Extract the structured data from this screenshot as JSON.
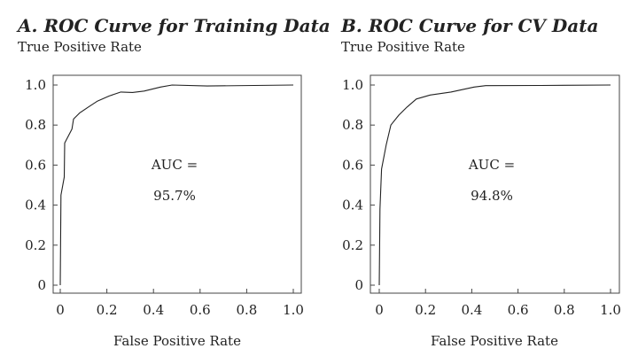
{
  "chart_data": [
    {
      "type": "line",
      "title": "A. ROC Curve for Training Data",
      "xlabel": "False Positive Rate",
      "ylabel": "True Positive Rate",
      "xlim": [
        0,
        1
      ],
      "ylim": [
        0,
        1
      ],
      "xticks": [
        "0",
        "0.2",
        "0.4",
        "0.6",
        "0.8",
        "1.0"
      ],
      "yticks": [
        "0",
        "0.2",
        "0.4",
        "0.6",
        "0.8",
        "1.0"
      ],
      "grid": false,
      "annotation": [
        "AUC =",
        "95.7%"
      ],
      "series": [
        {
          "x": [
            0,
            0.003,
            0.017,
            0.019,
            0.05,
            0.057,
            0.083,
            0.12,
            0.16,
            0.21,
            0.26,
            0.31,
            0.36,
            0.43,
            0.48,
            0.63,
            1.0
          ],
          "y": [
            0,
            0.45,
            0.54,
            0.71,
            0.78,
            0.83,
            0.86,
            0.89,
            0.92,
            0.945,
            0.965,
            0.963,
            0.97,
            0.99,
            1.0,
            0.995,
            1.0
          ]
        }
      ]
    },
    {
      "type": "line",
      "title": "B. ROC Curve for CV Data",
      "xlabel": "False Positive Rate",
      "ylabel": "True Positive Rate",
      "xlim": [
        0,
        1
      ],
      "ylim": [
        0,
        1
      ],
      "xticks": [
        "0",
        "0.2",
        "0.4",
        "0.6",
        "0.8",
        "1.0"
      ],
      "yticks": [
        "0",
        "0.2",
        "0.4",
        "0.6",
        "0.8",
        "1.0"
      ],
      "grid": false,
      "annotation": [
        "AUC =",
        "94.8%"
      ],
      "series": [
        {
          "x": [
            0,
            0.003,
            0.01,
            0.03,
            0.05,
            0.085,
            0.12,
            0.16,
            0.22,
            0.31,
            0.41,
            0.46,
            0.7,
            1.0
          ],
          "y": [
            0,
            0.38,
            0.58,
            0.7,
            0.8,
            0.85,
            0.89,
            0.93,
            0.95,
            0.965,
            0.99,
            0.997,
            0.998,
            1.0
          ]
        }
      ]
    }
  ]
}
